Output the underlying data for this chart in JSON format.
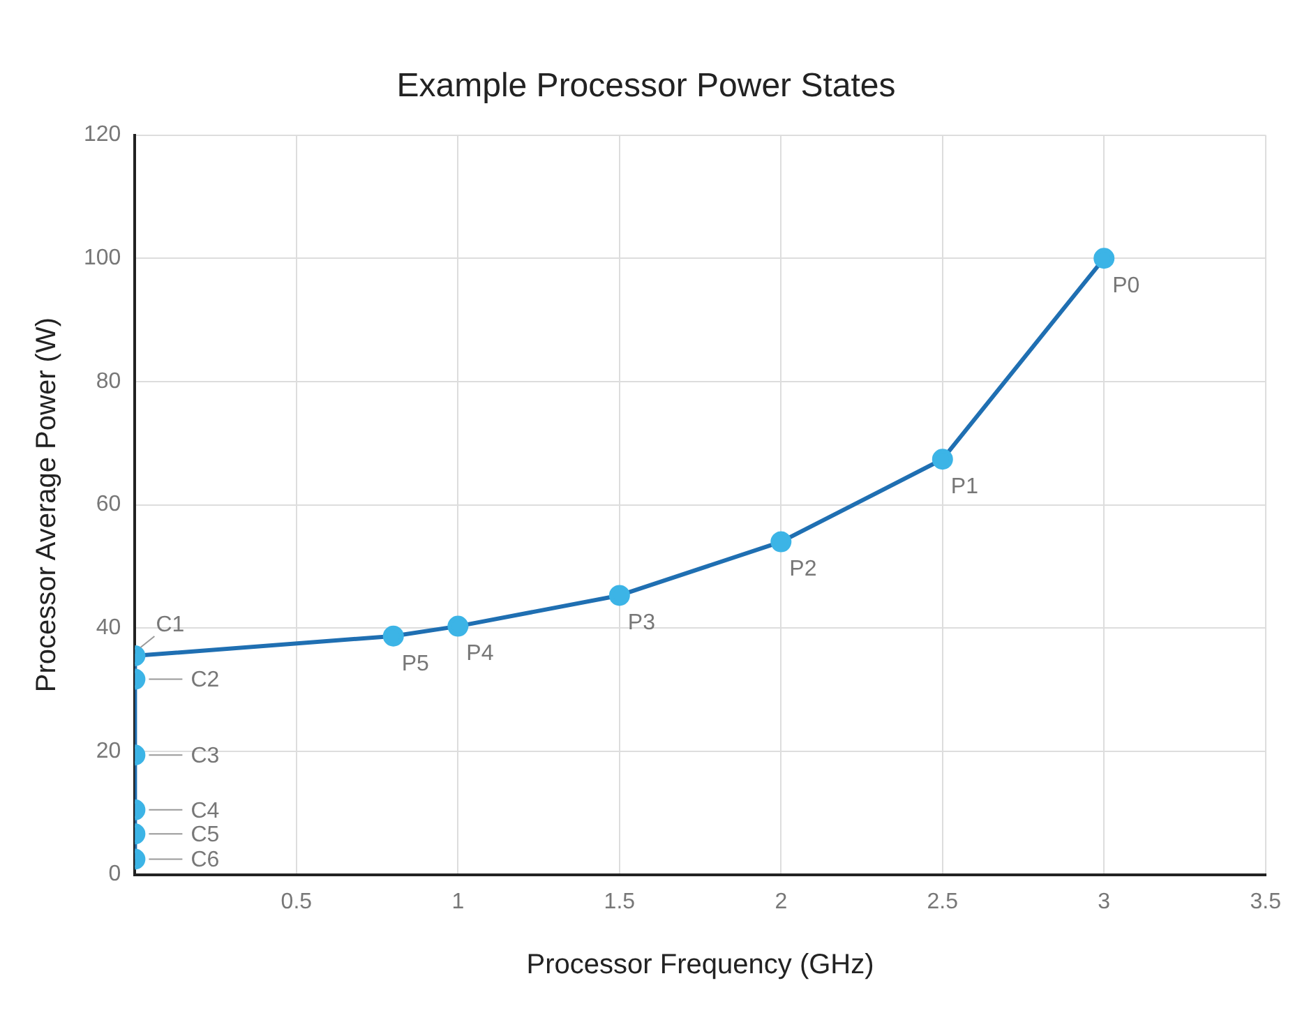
{
  "chart_data": {
    "type": "line",
    "title": "Example Processor Power States",
    "xlabel": "Processor Frequency (GHz)",
    "ylabel": "Processor Average Power (W)",
    "x": [
      0,
      0,
      0,
      0,
      0,
      0,
      0.8,
      1,
      1.5,
      2,
      2.5,
      3
    ],
    "series": [
      {
        "color": "#1f6fb2",
        "values": [
          2.5,
          6.6,
          10.5,
          19.4,
          31.7,
          35.5,
          38.7,
          40.3,
          45.3,
          54,
          67.4,
          100
        ]
      }
    ],
    "xlim": [
      0,
      3.5
    ],
    "xticks": [
      0.5,
      1,
      1.5,
      2,
      2.5,
      3,
      3.5
    ],
    "ylim": [
      0,
      120
    ],
    "yticks": [
      0,
      20,
      40,
      60,
      80,
      100,
      120
    ],
    "grid": true,
    "legend": false,
    "marker": "circle",
    "line_style": "solid",
    "annotations": [
      {
        "text": "C6",
        "x": 0,
        "y": 2.5
      },
      {
        "text": "C5",
        "x": 0,
        "y": 6.6
      },
      {
        "text": "C4",
        "x": 0,
        "y": 10.5
      },
      {
        "text": "C3",
        "x": 0,
        "y": 19.4
      },
      {
        "text": "C2",
        "x": 0,
        "y": 31.7
      },
      {
        "text": "C1",
        "x": 0,
        "y": 35.5
      },
      {
        "text": "P5",
        "x": 0.8,
        "y": 38.7
      },
      {
        "text": "P4",
        "x": 1,
        "y": 40.3
      },
      {
        "text": "P3",
        "x": 1.5,
        "y": 45.3
      },
      {
        "text": "P2",
        "x": 2,
        "y": 54
      },
      {
        "text": "P1",
        "x": 2.5,
        "y": 67.4
      },
      {
        "text": "P0",
        "x": 3,
        "y": 100
      }
    ]
  }
}
